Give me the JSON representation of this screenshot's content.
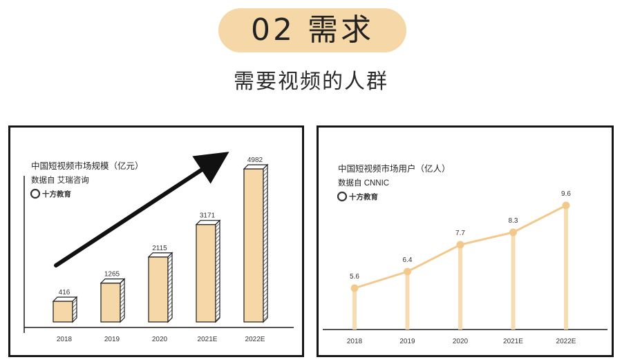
{
  "header": {
    "section_label": "02 需求",
    "subtitle": "需要视频的人群"
  },
  "chart_data": [
    {
      "type": "bar",
      "title": "中国短视频市场规模（亿元）",
      "source": "数据自 艾瑞咨询",
      "brand": "十方教育",
      "categories": [
        "2018",
        "2019",
        "2020",
        "2021E",
        "2022E"
      ],
      "values": [
        416,
        1265,
        2115,
        3171,
        4982
      ],
      "value_labels": [
        "416",
        "1265",
        "2115",
        "3171",
        "4982"
      ],
      "colors": {
        "bar": "#f6d7a7",
        "outline": "#1a1a1a",
        "arrow": "#111111"
      }
    },
    {
      "type": "line",
      "title": "中国短视频市场用户（亿人）",
      "source": "数据自 CNNIC",
      "brand": "十方教育",
      "categories": [
        "2018",
        "2019",
        "2020",
        "2021E",
        "2022E"
      ],
      "values": [
        5.6,
        6.4,
        7.7,
        8.3,
        9.6
      ],
      "value_labels": [
        "5.6",
        "6.4",
        "7.7",
        "8.3",
        "9.6"
      ],
      "colors": {
        "line": "#f2c98a",
        "stem": "#f6dcb0",
        "axis": "#1a1a1a"
      }
    }
  ]
}
